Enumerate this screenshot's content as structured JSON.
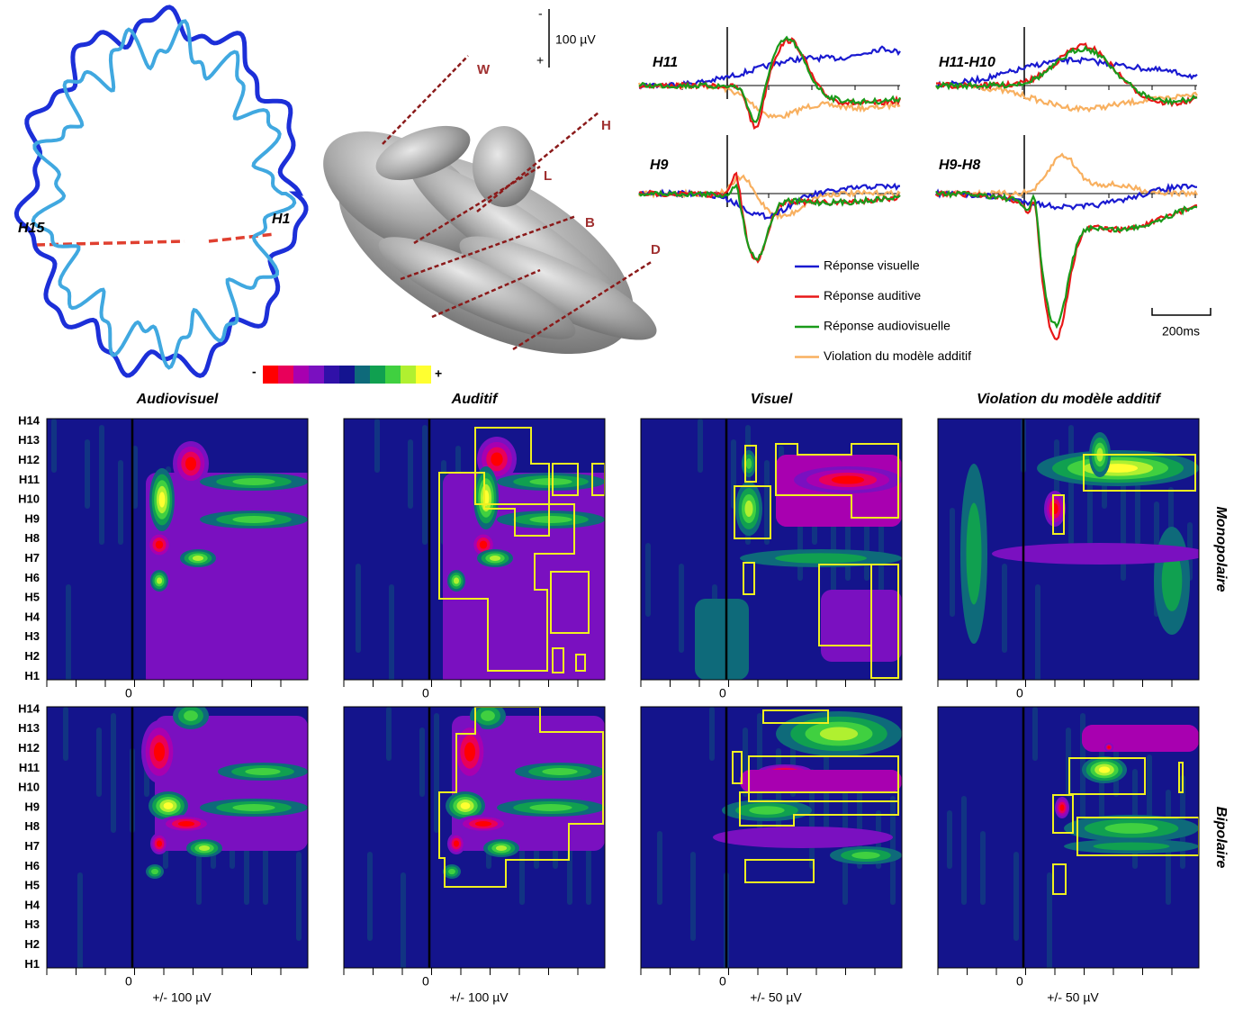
{
  "scale_bar": {
    "top": "-",
    "label": "100 µV",
    "bottom": "+"
  },
  "brain_labels": [
    "H15",
    "H1"
  ],
  "electrode_labels": [
    "W",
    "H",
    "L",
    "B",
    "D"
  ],
  "colorbar": {
    "min": "-",
    "max": "+"
  },
  "traces": {
    "panels": [
      "H11",
      "H11-H10",
      "H9",
      "H9-H8"
    ],
    "legend": [
      "Réponse visuelle",
      "Réponse auditive",
      "Réponse audiovisuelle",
      "Violation du modèle additif"
    ],
    "time_bar": "200ms"
  },
  "heatmaps": {
    "columns": [
      {
        "title": "Audiovisuel",
        "x_label": "+/- 100 µV"
      },
      {
        "title": "Auditif",
        "x_label": "+/- 100 µV"
      },
      {
        "title": "Visuel",
        "x_label": "+/- 50 µV"
      },
      {
        "title": "Violation du modèle additif",
        "x_label": "+/- 50 µV"
      }
    ],
    "rows": [
      "Monopolaire",
      "Bipolaire"
    ],
    "y_labels": [
      "H14",
      "H13",
      "H12",
      "H11",
      "H10",
      "H9",
      "H8",
      "H7",
      "H6",
      "H5",
      "H4",
      "H3",
      "H2",
      "H1"
    ],
    "zero": "0"
  }
}
